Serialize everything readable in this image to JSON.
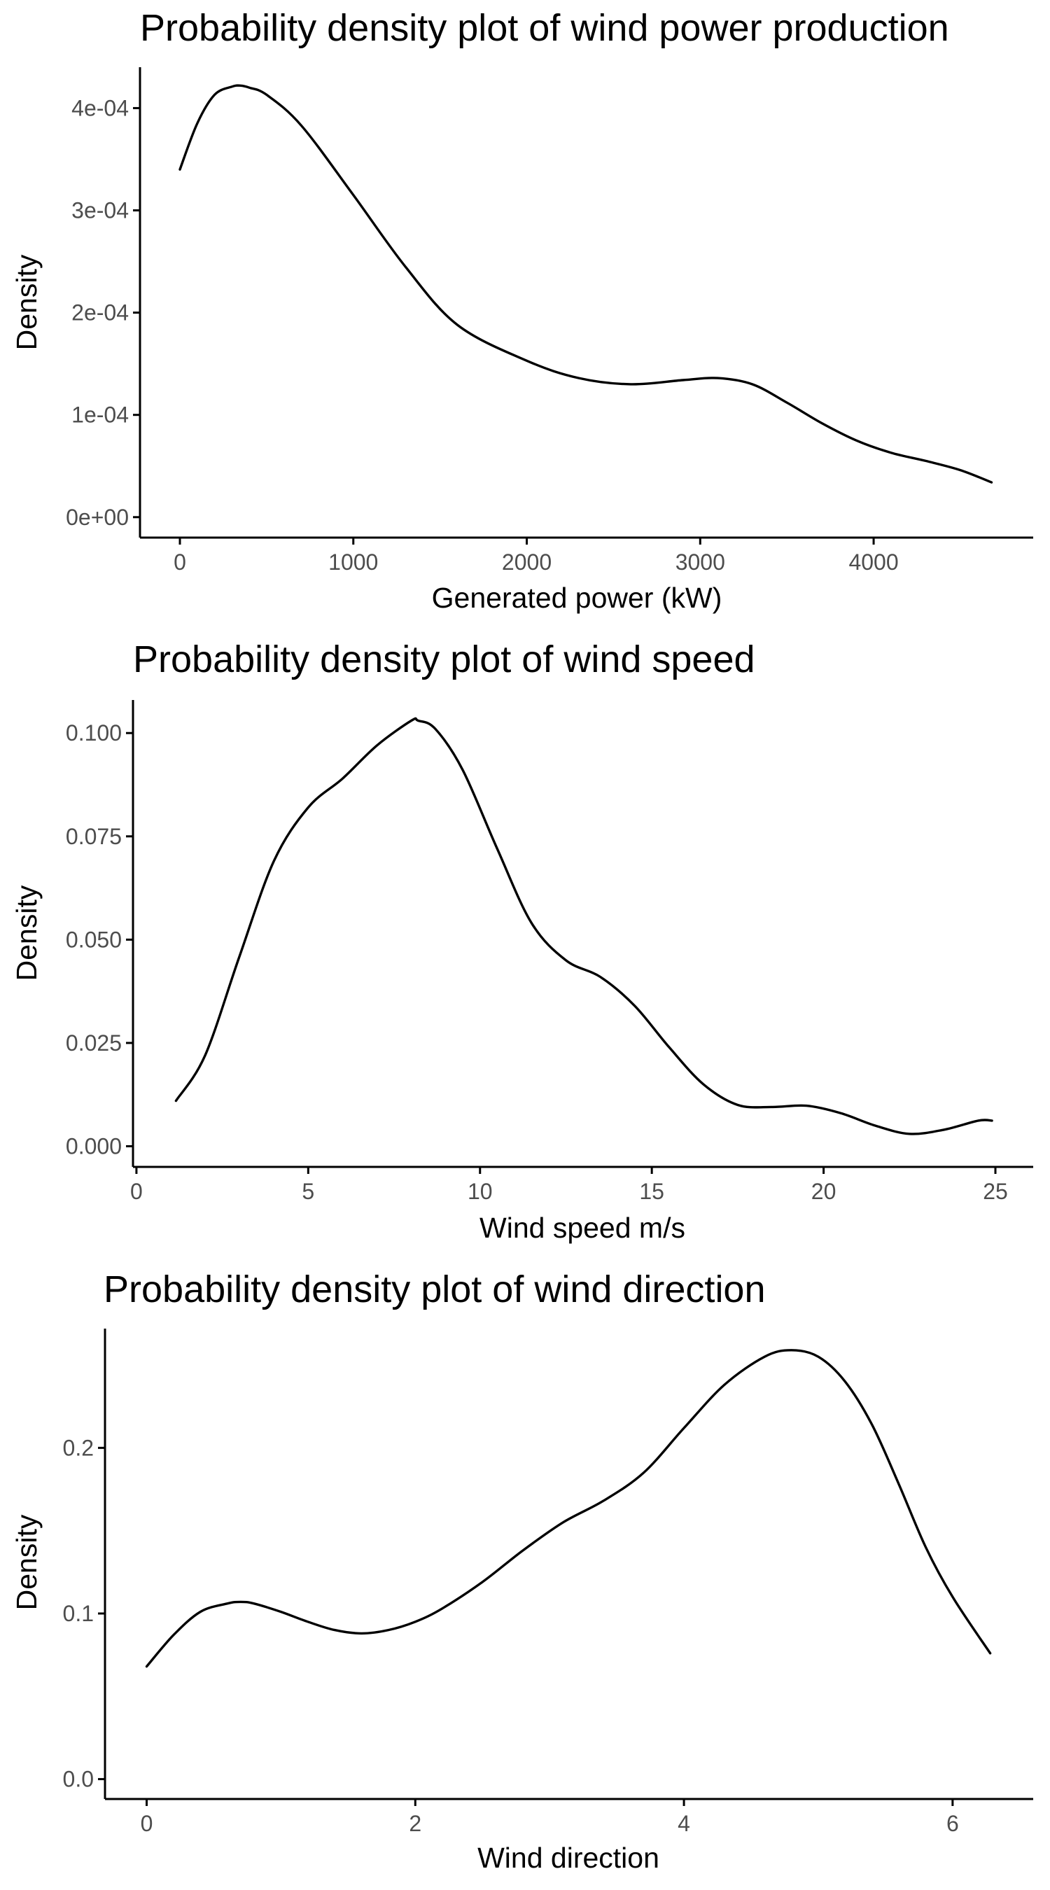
{
  "figure": {
    "background": "#ffffff",
    "line_color": "#000000",
    "tick_label_color": "#4d4d4d"
  },
  "chart_data": [
    {
      "type": "line",
      "title": "Probability density plot of wind power production",
      "xlabel": "Generated power (kW)",
      "ylabel": "Density",
      "xlim": [
        -230,
        4920
      ],
      "ylim": [
        -2e-05,
        0.00044
      ],
      "x_ticks": [
        0,
        1000,
        2000,
        3000,
        4000
      ],
      "x_tick_labels": [
        "0",
        "1000",
        "2000",
        "3000",
        "4000"
      ],
      "y_ticks": [
        0,
        0.0001,
        0.0002,
        0.0003,
        0.0004
      ],
      "y_tick_labels": [
        "0e+00",
        "1e-04",
        "2e-04",
        "3e-04",
        "4e-04"
      ],
      "grid": false,
      "series": [
        {
          "x": [
            0,
            100,
            200,
            300,
            350,
            400,
            500,
            700,
            1000,
            1300,
            1600,
            2000,
            2300,
            2600,
            2900,
            3100,
            3300,
            3500,
            3700,
            3900,
            4100,
            4300,
            4500,
            4680
          ],
          "y": [
            0.00034,
            0.000385,
            0.000413,
            0.000421,
            0.000422,
            0.00042,
            0.000413,
            0.000383,
            0.000315,
            0.000245,
            0.000188,
            0.000153,
            0.000136,
            0.00013,
            0.000134,
            0.000136,
            0.00013,
            0.000112,
            9.2e-05,
            7.5e-05,
            6.3e-05,
            5.5e-05,
            4.6e-05,
            3.4e-05
          ]
        }
      ]
    },
    {
      "type": "line",
      "title": "Probability density plot of wind speed",
      "xlabel": "Wind speed m/s",
      "ylabel": "Density",
      "xlim": [
        -0.1,
        26.1
      ],
      "ylim": [
        -0.005,
        0.108
      ],
      "x_ticks": [
        0,
        5,
        10,
        15,
        20,
        25
      ],
      "x_tick_labels": [
        "0",
        "5",
        "10",
        "15",
        "20",
        "25"
      ],
      "y_ticks": [
        0,
        0.025,
        0.05,
        0.075,
        0.1
      ],
      "y_tick_labels": [
        "0.000",
        "0.025",
        "0.050",
        "0.075",
        "0.100"
      ],
      "grid": false,
      "series": [
        {
          "x": [
            1.15,
            2,
            3,
            4,
            5,
            6,
            7,
            8,
            8.2,
            8.7,
            9.5,
            10.5,
            11.5,
            12.5,
            13.5,
            14.5,
            15.5,
            16.5,
            17.5,
            18.5,
            19.5,
            20.5,
            21.5,
            22.5,
            23.5,
            24.5,
            24.9
          ],
          "y": [
            0.011,
            0.022,
            0.046,
            0.069,
            0.082,
            0.089,
            0.097,
            0.103,
            0.103,
            0.101,
            0.091,
            0.072,
            0.054,
            0.045,
            0.041,
            0.034,
            0.024,
            0.015,
            0.01,
            0.0095,
            0.0098,
            0.008,
            0.005,
            0.003,
            0.004,
            0.0062,
            0.0062
          ]
        }
      ]
    },
    {
      "type": "line",
      "title": "Probability density plot of wind direction",
      "xlabel": "Wind direction",
      "ylabel": "Density",
      "xlim": [
        -0.31,
        6.6
      ],
      "ylim": [
        -0.012,
        0.272
      ],
      "x_ticks": [
        0,
        2,
        4,
        6
      ],
      "x_tick_labels": [
        "0",
        "2",
        "4",
        "6"
      ],
      "y_ticks": [
        0,
        0.1,
        0.2
      ],
      "y_tick_labels": [
        "0.0",
        "0.1",
        "0.2"
      ],
      "grid": false,
      "series": [
        {
          "x": [
            0,
            0.2,
            0.4,
            0.6,
            0.7,
            0.8,
            1.0,
            1.2,
            1.4,
            1.6,
            1.8,
            2.0,
            2.2,
            2.5,
            2.8,
            3.1,
            3.4,
            3.7,
            4.0,
            4.3,
            4.6,
            4.8,
            5.0,
            5.2,
            5.4,
            5.6,
            5.8,
            6.0,
            6.28
          ],
          "y": [
            0.068,
            0.087,
            0.101,
            0.106,
            0.107,
            0.106,
            0.101,
            0.095,
            0.09,
            0.088,
            0.09,
            0.095,
            0.103,
            0.119,
            0.138,
            0.155,
            0.168,
            0.185,
            0.212,
            0.238,
            0.255,
            0.259,
            0.255,
            0.24,
            0.214,
            0.178,
            0.14,
            0.11,
            0.076
          ]
        }
      ]
    }
  ]
}
